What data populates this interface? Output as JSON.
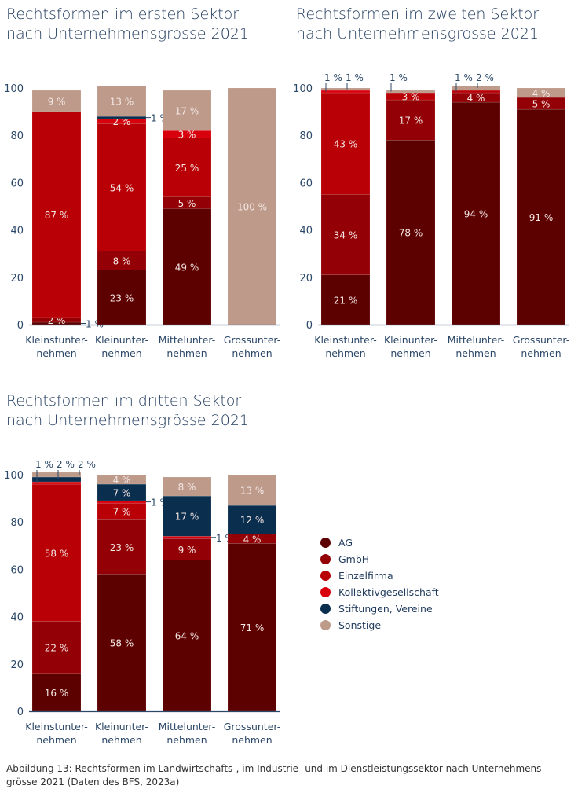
{
  "colors": {
    "AG": "#5c0000",
    "GmbH": "#930005",
    "Einzelfirma": "#b80006",
    "Kollektivgesellschaft": "#d9000d",
    "Stiftungen, Vereine": "#0a2e4e",
    "Sonstige": "#bd9a8a"
  },
  "legend": [
    "AG",
    "GmbH",
    "Einzelfirma",
    "Kollektivgesellschaft",
    "Stiftungen, Vereine",
    "Sonstige"
  ],
  "caption": "Abbildung 13: Rechtsformen im Landwirtschafts-, im Industrie- und im Dienstleistungssektor nach Unternehmens-\ngrösse 2021 (Daten des BFS, 2023a)",
  "chart_data": [
    {
      "type": "bar",
      "stacked": true,
      "title": "Rechtsformen im ersten Sektor\nnach Unternehmensgrösse 2021",
      "ylim": [
        0,
        100
      ],
      "yticks": [
        0,
        20,
        40,
        60,
        80,
        100
      ],
      "categories": [
        "Kleinstunter-\nnehmen",
        "Kleinunter-\nnehmen",
        "Mittelunter-\nnehmen",
        "Grossunter-\nnehmen"
      ],
      "series": [
        {
          "name": "AG",
          "values": [
            1,
            23,
            49,
            0
          ]
        },
        {
          "name": "GmbH",
          "values": [
            2,
            8,
            5,
            0
          ]
        },
        {
          "name": "Einzelfirma",
          "values": [
            87,
            54,
            25,
            0
          ]
        },
        {
          "name": "Kollektivgesellschaft",
          "values": [
            0,
            2,
            3,
            0
          ]
        },
        {
          "name": "Stiftungen, Vereine",
          "values": [
            0,
            1,
            0,
            0
          ]
        },
        {
          "name": "Sonstige",
          "values": [
            9,
            13,
            17,
            100
          ]
        }
      ]
    },
    {
      "type": "bar",
      "stacked": true,
      "title": "Rechtsformen im zweiten Sektor\nnach Unternehmensgrösse 2021",
      "ylim": [
        0,
        100
      ],
      "yticks": [
        0,
        20,
        40,
        60,
        80,
        100
      ],
      "categories": [
        "Kleinstunter-\nnehmen",
        "Kleinunter-\nnehmen",
        "Mittelunter-\nnehmen",
        "Grossunter-\nnehmen"
      ],
      "series": [
        {
          "name": "AG",
          "values": [
            21,
            78,
            94,
            91
          ]
        },
        {
          "name": "GmbH",
          "values": [
            34,
            17,
            4,
            5
          ]
        },
        {
          "name": "Einzelfirma",
          "values": [
            43,
            3,
            1,
            0
          ]
        },
        {
          "name": "Kollektivgesellschaft",
          "values": [
            1,
            0,
            0,
            0
          ]
        },
        {
          "name": "Stiftungen, Vereine",
          "values": [
            0,
            0,
            0,
            0
          ]
        },
        {
          "name": "Sonstige",
          "values": [
            1,
            1,
            2,
            4
          ]
        }
      ]
    },
    {
      "type": "bar",
      "stacked": true,
      "title": "Rechtsformen im dritten Sektor\nnach Unternehmensgrösse 2021",
      "ylim": [
        0,
        100
      ],
      "yticks": [
        0,
        20,
        40,
        60,
        80,
        100
      ],
      "categories": [
        "Kleinstunter-\nnehmen",
        "Kleinunter-\nnehmen",
        "Mittelunter-\nnehmen",
        "Grossunter-\nnehmen"
      ],
      "series": [
        {
          "name": "AG",
          "values": [
            16,
            58,
            64,
            71
          ]
        },
        {
          "name": "GmbH",
          "values": [
            22,
            23,
            9,
            4
          ]
        },
        {
          "name": "Einzelfirma",
          "values": [
            58,
            7,
            0,
            0
          ]
        },
        {
          "name": "Kollektivgesellschaft",
          "values": [
            1,
            1,
            1,
            0
          ]
        },
        {
          "name": "Stiftungen, Vereine",
          "values": [
            2,
            7,
            17,
            12
          ]
        },
        {
          "name": "Sonstige",
          "values": [
            2,
            4,
            8,
            13
          ]
        }
      ]
    }
  ]
}
